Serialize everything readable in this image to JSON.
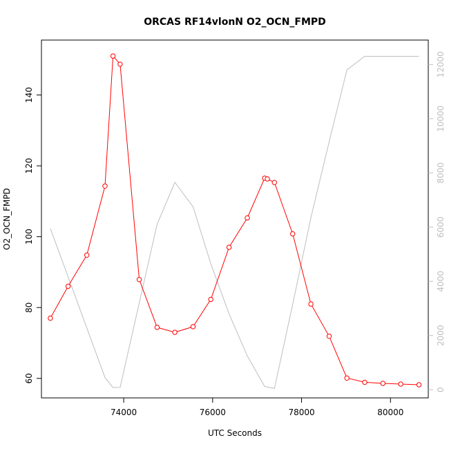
{
  "chart_data": {
    "type": "line",
    "title": "ORCAS RF14vlonN O2_OCN_FMPD",
    "xlabel": "UTC Seconds",
    "ylabel": "O2_OCN_FMPD",
    "xlim": [
      72150,
      80850
    ],
    "ylim": [
      54.5,
      155.5
    ],
    "y2lim": [
      -300,
      12900
    ],
    "x_ticks": [
      74000,
      76000,
      78000,
      80000
    ],
    "y_ticks": [
      60,
      80,
      100,
      120,
      140
    ],
    "y2_ticks": [
      0,
      2000,
      4000,
      6000,
      8000,
      10000,
      12000
    ],
    "grid": false,
    "series": [
      {
        "axis": "left",
        "color": "#ff0000",
        "markers": "open-circle",
        "x": [
          72350,
          72750,
          73170,
          73580,
          73760,
          73920,
          74350,
          74750,
          75150,
          75560,
          75960,
          76370,
          76780,
          77170,
          77230,
          77390,
          77800,
          78210,
          78620,
          79020,
          79420,
          79830,
          80230,
          80640
        ],
        "y": [
          77.0,
          86.0,
          94.8,
          114.3,
          151.0,
          148.7,
          87.9,
          74.4,
          73.0,
          74.6,
          82.3,
          97.0,
          105.3,
          116.5,
          116.3,
          115.3,
          100.8,
          81.0,
          71.9,
          60.1,
          58.9,
          58.6,
          58.4,
          58.2
        ]
      },
      {
        "axis": "right",
        "color": "#bebebe",
        "markers": "none",
        "x": [
          72350,
          73580,
          73760,
          73920,
          74750,
          75150,
          75560,
          75960,
          76370,
          76780,
          77170,
          77390,
          77800,
          78210,
          78620,
          79020,
          79420,
          79830,
          80230,
          80640
        ],
        "y": [
          5950,
          450,
          80,
          90,
          6100,
          7650,
          6750,
          4650,
          2800,
          1250,
          120,
          50,
          3150,
          6350,
          9150,
          11800,
          12300,
          12300,
          12300,
          12300
        ]
      }
    ]
  }
}
